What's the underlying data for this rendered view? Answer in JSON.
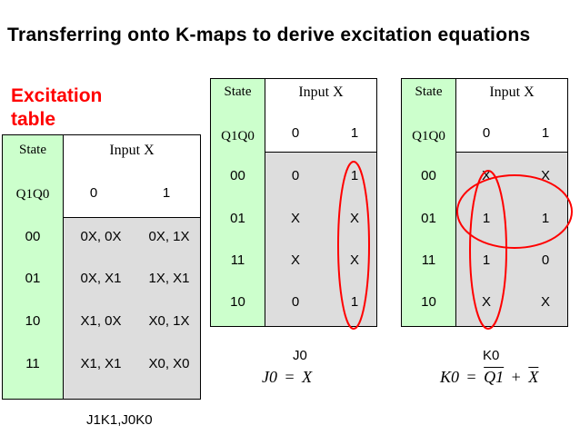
{
  "title": "Transferring onto K-maps to derive excitation equations",
  "excitation_title": "Excitation table",
  "excitation": {
    "state_header": "State",
    "input_header": "Input X",
    "q_label": "Q1Q0",
    "col0": "0",
    "col1": "1",
    "rows": [
      {
        "state": "00",
        "c0": "0X, 0X",
        "c1": "0X, 1X"
      },
      {
        "state": "01",
        "c0": "0X, X1",
        "c1": "1X, X1"
      },
      {
        "state": "10",
        "c0": "X1, 0X",
        "c1": "X0, 1X"
      },
      {
        "state": "11",
        "c0": "X1, X1",
        "c1": "X0, X0"
      }
    ],
    "caption": "J1K1,J0K0"
  },
  "kmap_j0": {
    "state_header": "State",
    "input_header": "Input X",
    "q_label": "Q1Q0",
    "col0": "0",
    "col1": "1",
    "rows": [
      {
        "state": "00",
        "c0": "0",
        "c1": "1"
      },
      {
        "state": "01",
        "c0": "X",
        "c1": "X"
      },
      {
        "state": "11",
        "c0": "X",
        "c1": "X"
      },
      {
        "state": "10",
        "c0": "0",
        "c1": "1"
      }
    ],
    "label": "J0",
    "equation_lhs": "J0",
    "equation_eq": "=",
    "equation_rhs": "X"
  },
  "kmap_k0": {
    "state_header": "State",
    "input_header": "Input X",
    "q_label": "Q1Q0",
    "col0": "0",
    "col1": "1",
    "rows": [
      {
        "state": "00",
        "c0": "X",
        "c1": "X"
      },
      {
        "state": "01",
        "c0": "1",
        "c1": "1"
      },
      {
        "state": "11",
        "c0": "1",
        "c1": "0"
      },
      {
        "state": "10",
        "c0": "X",
        "c1": "X"
      }
    ],
    "label": "K0",
    "equation_lhs": "K0",
    "equation_eq": "=",
    "equation_term1": "Q1",
    "equation_plus": "+",
    "equation_term2": "X"
  },
  "colors": {
    "state_column": "#ccffcc",
    "body": "#dddddd",
    "highlight": "#ff0000"
  }
}
